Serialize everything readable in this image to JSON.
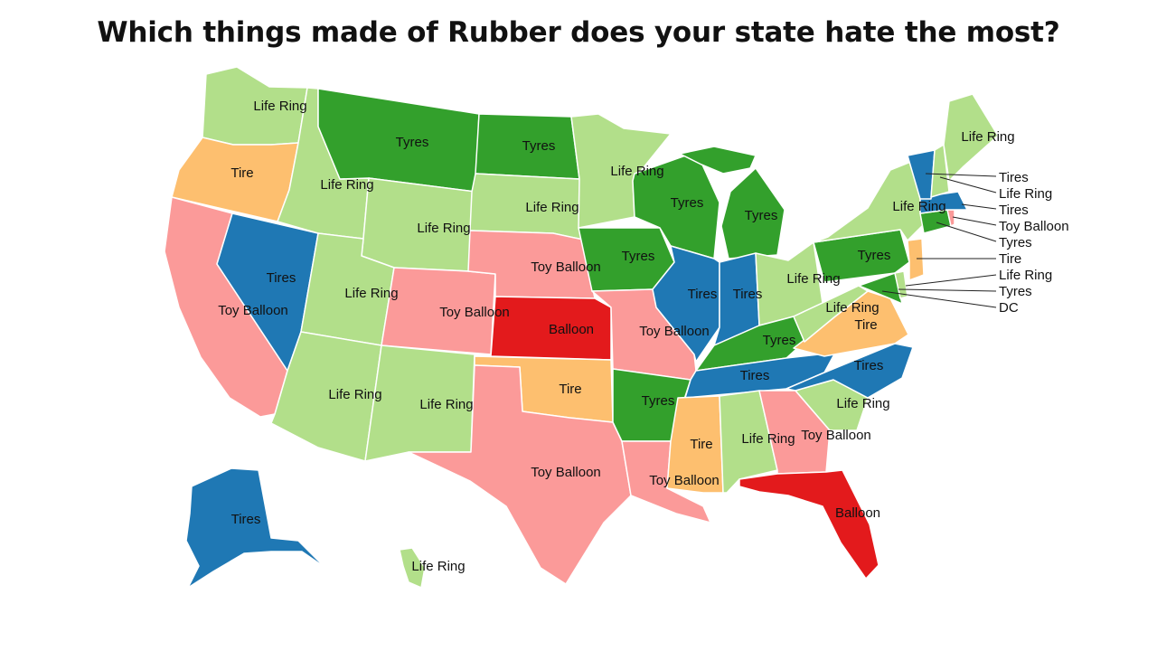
{
  "title": "Which things made of Rubber does your state hate the most?",
  "colors": {
    "Life Ring": "#b2df8a",
    "Tyres": "#33a02c",
    "Tire": "#fdbf6f",
    "Tires": "#1f78b4",
    "Toy Balloon": "#fb9a99",
    "Balloon": "#e31a1c"
  },
  "states": {
    "WA": "Life Ring",
    "OR": "Tire",
    "CA": "Toy Balloon",
    "NV": "Tires",
    "ID": "Life Ring",
    "MT": "Tyres",
    "WY": "Life Ring",
    "UT": "Life Ring",
    "AZ": "Life Ring",
    "CO": "Toy Balloon",
    "NM": "Life Ring",
    "ND": "Tyres",
    "SD": "Life Ring",
    "NE": "Toy Balloon",
    "KS": "Balloon",
    "OK": "Tire",
    "TX": "Toy Balloon",
    "MN": "Life Ring",
    "IA": "Tyres",
    "MO": "Toy Balloon",
    "AR": "Tyres",
    "LA": "Toy Balloon",
    "WI": "Tyres",
    "MI": "Tyres",
    "IL": "Tires",
    "IN": "Tires",
    "OH": "Life Ring",
    "KY": "Tyres",
    "TN": "Tires",
    "MS": "Tire",
    "AL": "Life Ring",
    "GA": "Toy Balloon",
    "FL": "Balloon",
    "SC": "Life Ring",
    "NC": "Tires",
    "VA": "Tire",
    "WV": "Life Ring",
    "PA": "Tyres",
    "NY": "Life Ring",
    "ME": "Life Ring",
    "AK": "Tires",
    "HI": "Life Ring",
    "VT": "Tires",
    "NH": "Life Ring",
    "MA": "Tires",
    "RI": "Toy Balloon",
    "CT": "Tyres",
    "NJ": "Tire",
    "DE": "Life Ring",
    "MD": "Tyres",
    "DC": "DC"
  },
  "callouts": [
    "Tires",
    "Life Ring",
    "Tires",
    "Toy Balloon",
    "Tyres",
    "Tire",
    "Life Ring",
    "Tyres",
    "DC"
  ]
}
